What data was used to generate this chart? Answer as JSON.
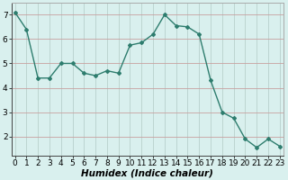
{
  "x": [
    0,
    1,
    2,
    3,
    4,
    5,
    6,
    7,
    8,
    9,
    10,
    11,
    12,
    13,
    14,
    15,
    16,
    17,
    18,
    19,
    20,
    21,
    22,
    23
  ],
  "y": [
    7.1,
    6.4,
    4.4,
    4.4,
    5.0,
    5.0,
    4.6,
    4.5,
    4.7,
    4.6,
    5.75,
    5.85,
    6.2,
    7.0,
    6.55,
    6.5,
    6.2,
    4.3,
    3.0,
    2.75,
    1.9,
    1.55,
    1.9,
    1.6
  ],
  "line_color": "#2e7d6e",
  "bg_color": "#d9f0ee",
  "hgrid_color": "#c8a0a0",
  "vgrid_color": "#b8d0cc",
  "xlabel": "Humidex (Indice chaleur)",
  "ylim": [
    1.2,
    7.5
  ],
  "xlim": [
    -0.3,
    23.3
  ],
  "yticks": [
    2,
    3,
    4,
    5,
    6,
    7
  ],
  "xticks": [
    0,
    1,
    2,
    3,
    4,
    5,
    6,
    7,
    8,
    9,
    10,
    11,
    12,
    13,
    14,
    15,
    16,
    17,
    18,
    19,
    20,
    21,
    22,
    23
  ],
  "xlabel_fontsize": 7.5,
  "tick_fontsize": 6.5,
  "marker": "D",
  "marker_size": 2.0,
  "line_width": 1.0
}
